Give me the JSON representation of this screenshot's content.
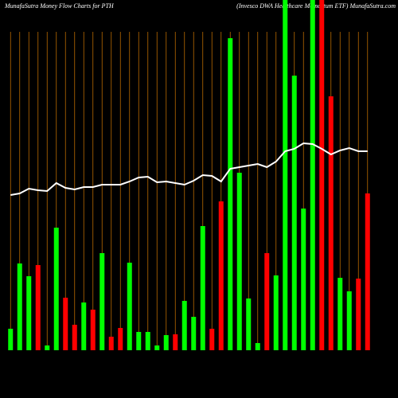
{
  "chart_data": {
    "type": "bar",
    "title": "MunafaSutra  Money Flow  Charts for PTH",
    "subtitle": "(Invesco  DWA Healthcare   Momentum ETF)  MunafaSutra.com",
    "categories": [
      null,
      null,
      null,
      null,
      null,
      null,
      null,
      null,
      null,
      null,
      null,
      null,
      null,
      null,
      null,
      null,
      null,
      null,
      null,
      null,
      null,
      null,
      null,
      null,
      null,
      null,
      null,
      null,
      null,
      null,
      null,
      null,
      null,
      null,
      null,
      null,
      null,
      null,
      null,
      null
    ],
    "ylim": [
      0,
      440
    ],
    "grid_color": "#b86a00",
    "bars": {
      "values": [
        27,
        109,
        93,
        107,
        6,
        154,
        66,
        32,
        60,
        51,
        122,
        17,
        28,
        110,
        23,
        23,
        6,
        19,
        20,
        62,
        42,
        156,
        27,
        187,
        392,
        223,
        65,
        9,
        122,
        94,
        445,
        345,
        178,
        445,
        445,
        319,
        91,
        74,
        90,
        197
      ],
      "colors": [
        "#00ff00",
        "#00ff00",
        "#00ff00",
        "#ff0000",
        "#00ff00",
        "#00ff00",
        "#ff0000",
        "#ff0000",
        "#00ff00",
        "#ff0000",
        "#00ff00",
        "#ff0000",
        "#ff0000",
        "#00ff00",
        "#00ff00",
        "#00ff00",
        "#00ff00",
        "#00ff00",
        "#ff0000",
        "#00ff00",
        "#00ff00",
        "#00ff00",
        "#ff0000",
        "#ff0000",
        "#00ff00",
        "#00ff00",
        "#00ff00",
        "#00ff00",
        "#ff0000",
        "#00ff00",
        "#00ff00",
        "#00ff00",
        "#00ff00",
        "#00ff00",
        "#ff0000",
        "#ff0000",
        "#00ff00",
        "#00ff00",
        "#ff0000",
        "#ff0000"
      ]
    },
    "line": {
      "color": "#ffffff",
      "values": [
        195,
        197,
        203,
        201,
        200,
        210,
        204,
        202,
        205,
        205,
        208,
        208,
        208,
        212,
        217,
        218,
        211,
        212,
        210,
        208,
        213,
        220,
        219,
        212,
        228,
        230,
        232,
        234,
        230,
        237,
        250,
        253,
        260,
        259,
        253,
        246,
        251,
        254,
        250,
        250
      ]
    }
  }
}
